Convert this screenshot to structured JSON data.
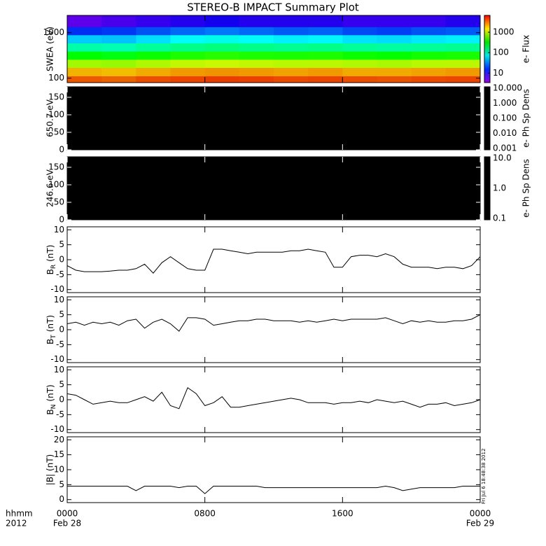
{
  "title": "STEREO-B IMPACT Summary Plot",
  "timestamp": "Fri Jul  6 18:48:38 2012",
  "xlabel": [
    "hhmm",
    "2012"
  ],
  "xlim": [
    0,
    24
  ],
  "xticks": [
    {
      "value": 0,
      "label": "0000"
    },
    {
      "value": 8,
      "label": "0800"
    },
    {
      "value": 16,
      "label": "1600"
    },
    {
      "value": 24,
      "label": "0000"
    }
  ],
  "xtick_dates": [
    {
      "value": 0,
      "label": "Feb 28"
    },
    {
      "value": 24,
      "label": "Feb 29"
    }
  ],
  "chart_data": [
    {
      "type": "heatmap",
      "ylabel": "SWEA (eV)",
      "log_y": true,
      "ylim": [
        80,
        2400
      ],
      "yticks": [
        100,
        1000
      ],
      "colorbar_label": "e- Flux",
      "zlim": [
        4,
        5700
      ],
      "zticks": [
        10,
        100,
        1000
      ],
      "x": [
        1,
        3,
        5,
        7,
        9,
        11,
        13,
        15,
        17,
        19,
        21,
        23
      ],
      "y": [
        90,
        140,
        210,
        320,
        480,
        730,
        1100,
        1650
      ],
      "values": [
        [
          3200,
          3000,
          3400,
          3600,
          3800,
          3700,
          3500,
          3600,
          3400,
          3300,
          3500,
          3600
        ],
        [
          1800,
          1700,
          1900,
          2100,
          2200,
          2100,
          2000,
          2100,
          1900,
          1900,
          2000,
          2100
        ],
        [
          700,
          650,
          750,
          850,
          900,
          850,
          800,
          820,
          760,
          740,
          800,
          820
        ],
        [
          250,
          230,
          270,
          300,
          320,
          300,
          290,
          300,
          270,
          260,
          280,
          290
        ],
        [
          90,
          85,
          100,
          110,
          120,
          110,
          105,
          110,
          100,
          95,
          100,
          105
        ],
        [
          40,
          38,
          45,
          55,
          60,
          55,
          50,
          52,
          46,
          44,
          48,
          50
        ],
        [
          15,
          16,
          19,
          22,
          24,
          22,
          20,
          21,
          18,
          17,
          19,
          20
        ],
        [
          6,
          7,
          8,
          9,
          10,
          9,
          9,
          9,
          8,
          8,
          8,
          9
        ]
      ]
    },
    {
      "type": "blank",
      "ylabel": "650.7 eV",
      "ylim": [
        0,
        180
      ],
      "yticks": [
        0,
        50,
        100,
        150
      ],
      "fill": "#000000",
      "colorbar_label": "e- Ph Sp Dens",
      "log_z": true,
      "zlim": [
        0.001,
        10
      ],
      "zticks": [
        {
          "value": 0.001,
          "label": "0.001"
        },
        {
          "value": 0.01,
          "label": "0.010"
        },
        {
          "value": 0.1,
          "label": "0.100"
        },
        {
          "value": 1,
          "label": "1.000"
        },
        {
          "value": 10,
          "label": "10.000"
        }
      ]
    },
    {
      "type": "blank",
      "ylabel": "246.6 eV",
      "ylim": [
        0,
        180
      ],
      "yticks": [
        0,
        50,
        100,
        150
      ],
      "fill": "#000000",
      "colorbar_label": "e- Ph Sp Dens",
      "log_z": true,
      "zlim": [
        0.1,
        10
      ],
      "zticks": [
        {
          "value": 0.1,
          "label": "0.1"
        },
        {
          "value": 1,
          "label": "1.0"
        },
        {
          "value": 10,
          "label": "10.0"
        }
      ]
    },
    {
      "type": "line",
      "ylabel": "B",
      "ylabel_sub": "R",
      "ylabel_unit": "(nT)",
      "ylim": [
        -11,
        11
      ],
      "yticks": [
        -10,
        -5,
        0,
        5,
        10
      ],
      "color": "#000000",
      "x": [
        0,
        0.5,
        1,
        1.5,
        2,
        2.5,
        3,
        3.5,
        4,
        4.5,
        5,
        5.5,
        6,
        6.5,
        7,
        7.5,
        8,
        8.5,
        9,
        9.5,
        10,
        10.5,
        11,
        11.5,
        12,
        12.5,
        13,
        13.5,
        14,
        14.5,
        15,
        15.5,
        16,
        16.5,
        17,
        17.5,
        18,
        18.5,
        19,
        19.5,
        20,
        20.5,
        21,
        21.5,
        22,
        22.5,
        23,
        23.5,
        24
      ],
      "values": [
        -2,
        -3.5,
        -4,
        -4,
        -4,
        -3.8,
        -3.5,
        -3.5,
        -3,
        -1.5,
        -4.5,
        -1,
        1,
        -1,
        -3,
        -3.5,
        -3.5,
        3.5,
        3.5,
        3,
        2.5,
        2,
        2.5,
        2.5,
        2.5,
        2.5,
        3,
        3,
        3.5,
        3,
        2.5,
        -2.5,
        -2.5,
        1,
        1.5,
        1.5,
        1,
        2,
        1,
        -1.5,
        -2.5,
        -2.5,
        -2.5,
        -3,
        -2.5,
        -2.5,
        -3,
        -2,
        1
      ]
    },
    {
      "type": "line",
      "ylabel": "B",
      "ylabel_sub": "T",
      "ylabel_unit": "(nT)",
      "ylim": [
        -11,
        11
      ],
      "yticks": [
        -10,
        -5,
        0,
        5,
        10
      ],
      "color": "#000000",
      "x": [
        0,
        0.5,
        1,
        1.5,
        2,
        2.5,
        3,
        3.5,
        4,
        4.5,
        5,
        5.5,
        6,
        6.5,
        7,
        7.5,
        8,
        8.5,
        9,
        9.5,
        10,
        10.5,
        11,
        11.5,
        12,
        12.5,
        13,
        13.5,
        14,
        14.5,
        15,
        15.5,
        16,
        16.5,
        17,
        17.5,
        18,
        18.5,
        19,
        19.5,
        20,
        20.5,
        21,
        21.5,
        22,
        22.5,
        23,
        23.5,
        24
      ],
      "values": [
        2,
        2.5,
        1.5,
        2.5,
        2,
        2.5,
        1.5,
        3,
        3.5,
        0.5,
        2.5,
        3.5,
        2,
        -0.5,
        4,
        4,
        3.5,
        1.5,
        2,
        2.5,
        3,
        3,
        3.5,
        3.5,
        3,
        3,
        3,
        2.5,
        3,
        2.5,
        3,
        3.5,
        3,
        3.5,
        3.5,
        3.5,
        3.5,
        4,
        3,
        2,
        3,
        2.5,
        3,
        2.5,
        2.5,
        3,
        3,
        3.5,
        5
      ]
    },
    {
      "type": "line",
      "ylabel": "B",
      "ylabel_sub": "N",
      "ylabel_unit": "(nT)",
      "ylim": [
        -11,
        11
      ],
      "yticks": [
        -10,
        -5,
        0,
        5,
        10
      ],
      "color": "#000000",
      "x": [
        0,
        0.5,
        1,
        1.5,
        2,
        2.5,
        3,
        3.5,
        4,
        4.5,
        5,
        5.5,
        6,
        6.5,
        7,
        7.5,
        8,
        8.5,
        9,
        9.5,
        10,
        10.5,
        11,
        11.5,
        12,
        12.5,
        13,
        13.5,
        14,
        14.5,
        15,
        15.5,
        16,
        16.5,
        17,
        17.5,
        18,
        18.5,
        19,
        19.5,
        20,
        20.5,
        21,
        21.5,
        22,
        22.5,
        23,
        23.5,
        24
      ],
      "values": [
        2,
        1.5,
        0,
        -1.5,
        -1,
        -0.5,
        -1,
        -1,
        0,
        1,
        -0.5,
        2.5,
        -2,
        -3,
        4,
        2,
        -2,
        -1,
        1,
        -2.5,
        -2.5,
        -2,
        -1.5,
        -1,
        -0.5,
        0,
        0.5,
        0,
        -1,
        -1,
        -1,
        -1.5,
        -1,
        -1,
        -0.5,
        -1,
        0,
        -0.5,
        -1,
        -0.5,
        -1.5,
        -2.5,
        -1.5,
        -1.5,
        -1,
        -2,
        -1.5,
        -1,
        0
      ]
    },
    {
      "type": "line",
      "ylabel": "|B| (nT)",
      "ylim": [
        -1,
        21
      ],
      "yticks": [
        0,
        5,
        10,
        15,
        20
      ],
      "color": "#000000",
      "x": [
        0,
        0.5,
        1,
        1.5,
        2,
        2.5,
        3,
        3.5,
        4,
        4.5,
        5,
        5.5,
        6,
        6.5,
        7,
        7.5,
        8,
        8.5,
        9,
        9.5,
        10,
        10.5,
        11,
        11.5,
        12,
        12.5,
        13,
        13.5,
        14,
        14.5,
        15,
        15.5,
        16,
        16.5,
        17,
        17.5,
        18,
        18.5,
        19,
        19.5,
        20,
        20.5,
        21,
        21.5,
        22,
        22.5,
        23,
        23.5,
        24
      ],
      "values": [
        4.5,
        4.5,
        4.5,
        4.5,
        4.5,
        4.5,
        4.5,
        4.5,
        3,
        4.5,
        4.5,
        4.5,
        4.5,
        4,
        4.5,
        4.5,
        2,
        4.5,
        4.5,
        4.5,
        4.5,
        4.5,
        4.5,
        4,
        4,
        4,
        4,
        4,
        4,
        4,
        4,
        4,
        4,
        4,
        4,
        4,
        4,
        4.5,
        4,
        3,
        3.5,
        4,
        4,
        4,
        4,
        4,
        4.5,
        4.5,
        4.5
      ]
    }
  ]
}
